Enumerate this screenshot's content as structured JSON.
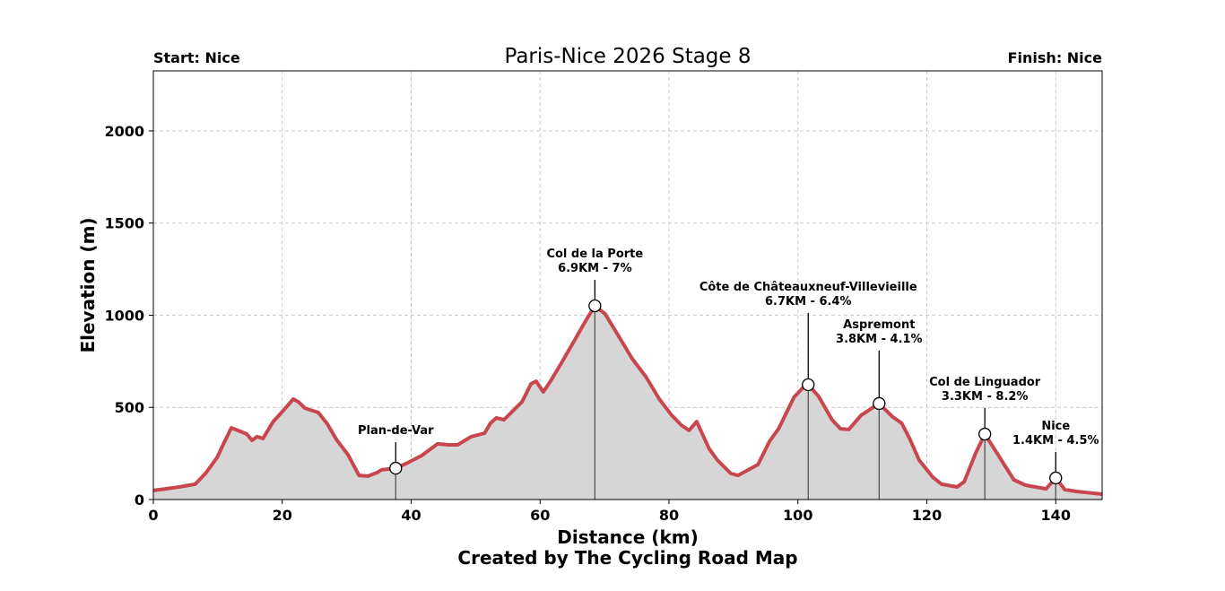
{
  "chart_data": {
    "type": "area",
    "title": "Paris-Nice 2026 Stage 8",
    "start_label": "Start: Nice",
    "finish_label": "Finish: Nice",
    "xlabel": "Distance (km)",
    "ylabel": "Elevation (m)",
    "credit": "Created by The Cycling Road Map",
    "xlim": [
      0,
      147.2
    ],
    "ylim": [
      0,
      2326
    ],
    "xticks": [
      "0",
      "20",
      "40",
      "60",
      "80",
      "100",
      "120",
      "140"
    ],
    "yticks": [
      "0",
      "500",
      "1000",
      "1500",
      "2000"
    ],
    "grid": true,
    "colors": {
      "line": "#c8474f",
      "fill": "#d6d6d6",
      "grid": "#cccccc"
    },
    "profile": {
      "x": [
        0,
        1.9,
        4,
        6.5,
        8.2,
        9.9,
        11,
        12.1,
        13.1,
        14.5,
        15.3,
        16.1,
        17,
        18.6,
        20,
        21.7,
        22.5,
        23.5,
        25.6,
        27,
        28.4,
        30.2,
        31.9,
        33.3,
        34.7,
        35.4,
        37.6,
        39.5,
        41.6,
        44.1,
        45.8,
        47.2,
        49.3,
        51.4,
        52.3,
        53.2,
        54.4,
        55.8,
        57.2,
        58.6,
        59.4,
        60.5,
        61.6,
        63.2,
        65.3,
        66.9,
        68.5,
        70.1,
        72.2,
        74.3,
        76.4,
        78.5,
        80.3,
        81.9,
        83.1,
        84.3,
        86.2,
        87.5,
        89.6,
        90.7,
        93.8,
        95.6,
        97,
        99.4,
        100.8,
        101.6,
        103.2,
        105.3,
        106.6,
        107.9,
        109.8,
        112.6,
        114.7,
        116.1,
        117.4,
        118.8,
        120.9,
        122.3,
        124.7,
        125.8,
        127.6,
        129,
        131.3,
        133.5,
        135.3,
        138.5,
        140,
        141.4,
        143.2,
        147.2
      ],
      "y": [
        49,
        58,
        68,
        83,
        146,
        229,
        311,
        389,
        375,
        355,
        321,
        341,
        331,
        423,
        477,
        545,
        530,
        496,
        472,
        409,
        326,
        243,
        131,
        127,
        146,
        161,
        170,
        200,
        238,
        302,
        297,
        297,
        341,
        360,
        414,
        443,
        433,
        482,
        530,
        628,
        642,
        584,
        642,
        735,
        861,
        959,
        1051,
        1007,
        886,
        764,
        667,
        545,
        462,
        404,
        375,
        423,
        277,
        214,
        141,
        131,
        190,
        316,
        384,
        555,
        608,
        623,
        560,
        433,
        384,
        380,
        457,
        521,
        448,
        414,
        326,
        214,
        122,
        83,
        68,
        97,
        253,
        355,
        229,
        107,
        78,
        58,
        117,
        54,
        44,
        29
      ]
    },
    "annotations": [
      {
        "name": "Plan-de-Var",
        "detail": "",
        "km": 37.6,
        "elevation": 170
      },
      {
        "name": "Col de la Porte",
        "detail": "6.9KM - 7%",
        "km": 68.5,
        "elevation": 1051
      },
      {
        "name": "Côte de Châteauxneuf-Villevieille",
        "detail": "6.7KM - 6.4%",
        "km": 101.6,
        "elevation": 623
      },
      {
        "name": "Aspremont",
        "detail": "3.8KM - 4.1%",
        "km": 112.6,
        "elevation": 521
      },
      {
        "name": "Col de Linguador",
        "detail": "3.3KM - 8.2%",
        "km": 129,
        "elevation": 355
      },
      {
        "name": "Nice",
        "detail": "1.4KM - 4.5%",
        "km": 140,
        "elevation": 117
      }
    ]
  }
}
